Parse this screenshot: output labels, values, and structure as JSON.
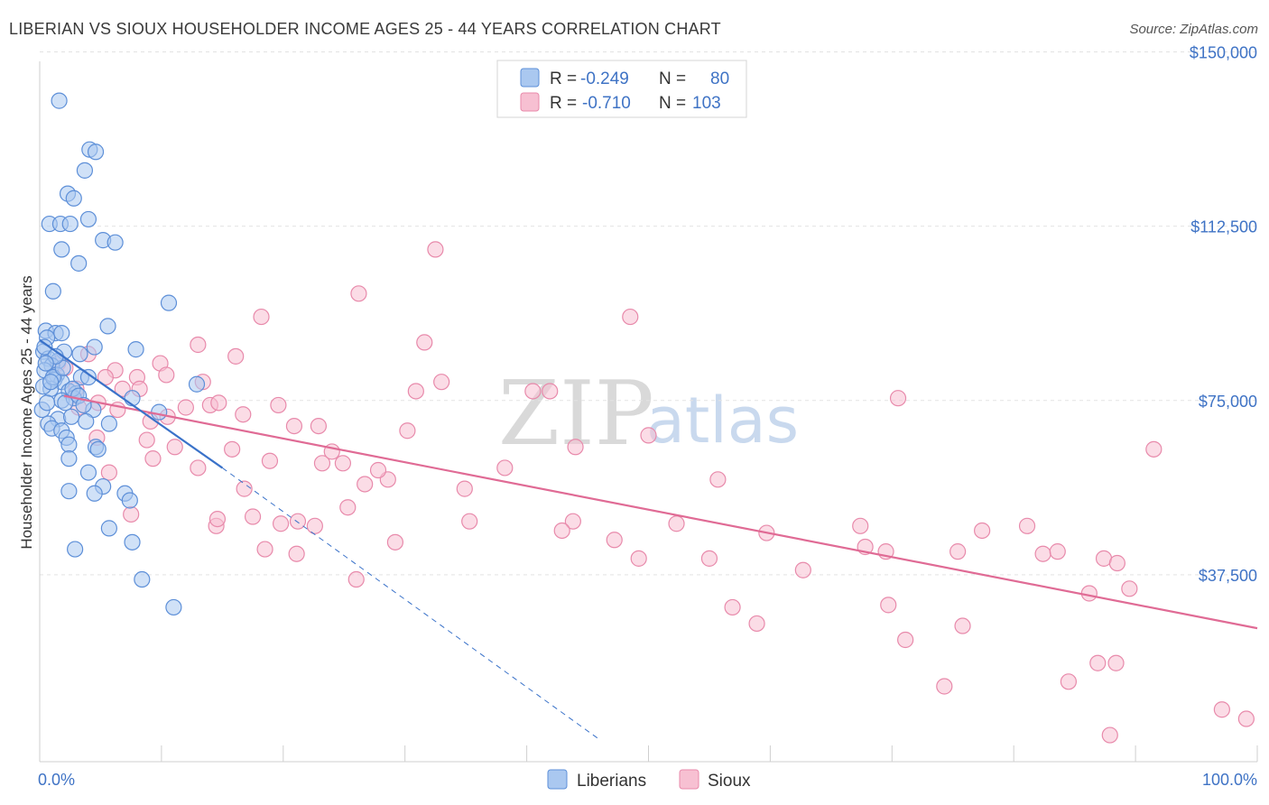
{
  "title": "LIBERIAN VS SIOUX HOUSEHOLDER INCOME AGES 25 - 44 YEARS CORRELATION CHART",
  "source": "Source: ZipAtlas.com",
  "watermark": {
    "zip": "ZIP",
    "atlas": "atlas"
  },
  "colors": {
    "liberians_fill": "#aac8f0",
    "liberians_stroke": "#5d8fd8",
    "liberians_line": "#3a72c9",
    "sioux_fill": "#f7c0d2",
    "sioux_stroke": "#e88aab",
    "sioux_line": "#e06b95",
    "grid": "#e3e3e3",
    "axis_text": "#3f73c5"
  },
  "legend": {
    "rows": [
      {
        "r_label": "R = ",
        "r_value": "-0.249",
        "n_label": "N = ",
        "n_value": "80"
      },
      {
        "r_label": "R = ",
        "r_value": "-0.710",
        "n_label": "N = ",
        "n_value": "103"
      }
    ]
  },
  "bottom_legend": {
    "liberians": "Liberians",
    "sioux": "Sioux"
  },
  "chart_data": {
    "type": "scatter",
    "title": "LIBERIAN VS SIOUX HOUSEHOLDER INCOME AGES 25 - 44 YEARS CORRELATION CHART",
    "xlabel": "",
    "ylabel": "Householder Income Ages 25 - 44 years",
    "xlim": [
      0,
      100
    ],
    "ylim": [
      0,
      157000
    ],
    "x_tick_labels": [
      "0.0%",
      "100.0%"
    ],
    "y_ticks": [
      37500,
      75000,
      112500,
      150000
    ],
    "y_tick_labels": [
      "$37,500",
      "$75,000",
      "$112,500",
      "$150,000"
    ],
    "grid": true,
    "legend_position": "top-center",
    "series": [
      {
        "name": "Liberians",
        "trend": {
          "x": [
            0,
            15
          ],
          "y": [
            88000,
            60500
          ],
          "extended_to": [
            46,
            2000
          ]
        },
        "points": [
          [
            1.6,
            139500
          ],
          [
            4.1,
            129000
          ],
          [
            4.6,
            128500
          ],
          [
            3.7,
            124500
          ],
          [
            2.3,
            119500
          ],
          [
            2.8,
            118500
          ],
          [
            0.8,
            113000
          ],
          [
            1.7,
            113000
          ],
          [
            2.5,
            113000
          ],
          [
            4.0,
            114000
          ],
          [
            5.2,
            109500
          ],
          [
            1.8,
            107500
          ],
          [
            6.2,
            109000
          ],
          [
            3.2,
            104500
          ],
          [
            1.1,
            98500
          ],
          [
            10.6,
            96000
          ],
          [
            5.6,
            91000
          ],
          [
            0.5,
            90000
          ],
          [
            1.3,
            89500
          ],
          [
            1.8,
            89500
          ],
          [
            0.6,
            88500
          ],
          [
            7.9,
            86000
          ],
          [
            0.3,
            85500
          ],
          [
            2.0,
            85500
          ],
          [
            3.3,
            85000
          ],
          [
            0.7,
            84000
          ],
          [
            4.5,
            86500
          ],
          [
            1.5,
            83500
          ],
          [
            1.0,
            82500
          ],
          [
            0.4,
            81500
          ],
          [
            1.4,
            80500
          ],
          [
            3.4,
            80000
          ],
          [
            4.0,
            80000
          ],
          [
            1.2,
            79500
          ],
          [
            1.8,
            79000
          ],
          [
            0.9,
            77500
          ],
          [
            2.4,
            77000
          ],
          [
            3.0,
            76500
          ],
          [
            1.8,
            75000
          ],
          [
            2.8,
            75500
          ],
          [
            0.2,
            73000
          ],
          [
            2.1,
            74500
          ],
          [
            4.4,
            73000
          ],
          [
            1.5,
            71000
          ],
          [
            0.7,
            70000
          ],
          [
            3.8,
            70500
          ],
          [
            5.7,
            70000
          ],
          [
            1.0,
            69000
          ],
          [
            1.8,
            68500
          ],
          [
            2.2,
            67000
          ],
          [
            4.6,
            65000
          ],
          [
            2.4,
            65500
          ],
          [
            4.8,
            64500
          ],
          [
            2.4,
            62500
          ],
          [
            4.0,
            59500
          ],
          [
            2.4,
            55500
          ],
          [
            5.2,
            56500
          ],
          [
            4.5,
            55000
          ],
          [
            7.0,
            55000
          ],
          [
            7.4,
            53500
          ],
          [
            5.7,
            47500
          ],
          [
            7.6,
            44500
          ],
          [
            2.9,
            43000
          ],
          [
            8.4,
            36500
          ],
          [
            11.0,
            30500
          ],
          [
            12.9,
            78500
          ],
          [
            9.8,
            72500
          ],
          [
            7.6,
            75500
          ],
          [
            0.3,
            78000
          ],
          [
            2.7,
            77500
          ],
          [
            0.6,
            74500
          ],
          [
            1.1,
            80000
          ],
          [
            3.2,
            76000
          ],
          [
            0.4,
            86500
          ],
          [
            1.9,
            82000
          ],
          [
            2.6,
            71500
          ],
          [
            1.3,
            84500
          ],
          [
            0.9,
            79000
          ],
          [
            3.6,
            74000
          ],
          [
            0.5,
            83000
          ]
        ]
      },
      {
        "name": "Sioux",
        "trend": {
          "x": [
            2,
            100
          ],
          "y": [
            76000,
            26000
          ]
        },
        "points": [
          [
            32.5,
            107500
          ],
          [
            26.2,
            98000
          ],
          [
            18.2,
            93000
          ],
          [
            48.5,
            93000
          ],
          [
            31.6,
            87500
          ],
          [
            13.0,
            87000
          ],
          [
            16.1,
            84500
          ],
          [
            4.0,
            85000
          ],
          [
            1.5,
            83000
          ],
          [
            9.9,
            83000
          ],
          [
            6.2,
            81500
          ],
          [
            10.4,
            80500
          ],
          [
            5.4,
            80000
          ],
          [
            8.0,
            80000
          ],
          [
            13.4,
            79000
          ],
          [
            33.0,
            79000
          ],
          [
            30.9,
            77000
          ],
          [
            6.8,
            77500
          ],
          [
            8.2,
            77500
          ],
          [
            3.0,
            77500
          ],
          [
            40.5,
            77000
          ],
          [
            41.9,
            77000
          ],
          [
            70.5,
            75500
          ],
          [
            14.0,
            74000
          ],
          [
            14.7,
            74500
          ],
          [
            19.6,
            74000
          ],
          [
            3.2,
            73500
          ],
          [
            6.4,
            73000
          ],
          [
            12.0,
            73500
          ],
          [
            16.7,
            72000
          ],
          [
            10.5,
            71500
          ],
          [
            20.9,
            69500
          ],
          [
            22.9,
            69500
          ],
          [
            30.2,
            68500
          ],
          [
            50.0,
            67500
          ],
          [
            4.7,
            67000
          ],
          [
            8.8,
            66500
          ],
          [
            11.1,
            65000
          ],
          [
            15.8,
            64500
          ],
          [
            44.0,
            65000
          ],
          [
            91.5,
            64500
          ],
          [
            9.3,
            62500
          ],
          [
            18.9,
            62000
          ],
          [
            23.2,
            61500
          ],
          [
            24.9,
            61500
          ],
          [
            13.0,
            60500
          ],
          [
            26.7,
            57000
          ],
          [
            28.6,
            58000
          ],
          [
            16.8,
            56000
          ],
          [
            34.9,
            56000
          ],
          [
            55.7,
            58000
          ],
          [
            5.7,
            59500
          ],
          [
            25.3,
            52000
          ],
          [
            7.5,
            50500
          ],
          [
            17.5,
            50000
          ],
          [
            21.2,
            49000
          ],
          [
            35.3,
            49000
          ],
          [
            43.8,
            49000
          ],
          [
            52.3,
            48500
          ],
          [
            14.5,
            48000
          ],
          [
            19.8,
            48500
          ],
          [
            22.6,
            48000
          ],
          [
            42.9,
            47000
          ],
          [
            59.7,
            46500
          ],
          [
            67.4,
            48000
          ],
          [
            77.4,
            47000
          ],
          [
            81.1,
            48000
          ],
          [
            47.2,
            45000
          ],
          [
            29.2,
            44500
          ],
          [
            67.8,
            43500
          ],
          [
            69.5,
            42500
          ],
          [
            75.4,
            42500
          ],
          [
            82.4,
            42000
          ],
          [
            83.6,
            42500
          ],
          [
            87.4,
            41000
          ],
          [
            21.1,
            42000
          ],
          [
            49.2,
            41000
          ],
          [
            55.0,
            41000
          ],
          [
            62.7,
            38500
          ],
          [
            88.5,
            40000
          ],
          [
            18.5,
            43000
          ],
          [
            26.0,
            36500
          ],
          [
            89.5,
            34500
          ],
          [
            86.2,
            33500
          ],
          [
            56.9,
            30500
          ],
          [
            69.7,
            31000
          ],
          [
            58.9,
            27000
          ],
          [
            71.1,
            23500
          ],
          [
            75.8,
            26500
          ],
          [
            86.9,
            18500
          ],
          [
            88.4,
            18500
          ],
          [
            74.3,
            13500
          ],
          [
            84.5,
            14500
          ],
          [
            97.1,
            8500
          ],
          [
            99.1,
            6500
          ],
          [
            87.9,
            3000
          ],
          [
            14.6,
            49500
          ],
          [
            27.8,
            60000
          ],
          [
            38.2,
            60500
          ],
          [
            2.1,
            82000
          ],
          [
            24.0,
            64000
          ],
          [
            9.1,
            70500
          ],
          [
            4.8,
            74500
          ]
        ]
      }
    ]
  }
}
